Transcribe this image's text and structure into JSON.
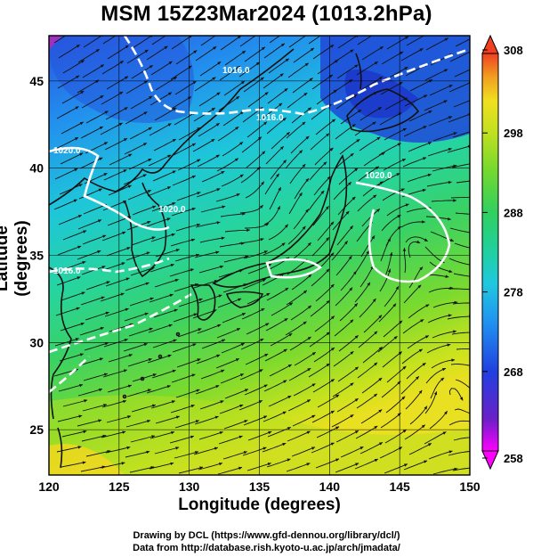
{
  "title": "MSM 15Z23Mar2024 (1013.2hPa)",
  "axes": {
    "xlabel": "Longitude (degrees)",
    "ylabel": "Latitude  (degrees)",
    "x_range": [
      120,
      150
    ],
    "y_range": [
      22.4,
      47.6
    ],
    "x_ticks": [
      "120",
      "125",
      "130",
      "135",
      "140",
      "145",
      "150"
    ],
    "y_ticks": [
      "25",
      "30",
      "35",
      "40",
      "45"
    ],
    "grid": true
  },
  "colorbar": {
    "min": 258,
    "max": 308,
    "tick_labels": [
      "308",
      "298",
      "288",
      "278",
      "268",
      "258"
    ],
    "colors_low_to_high": [
      "#ff00ff",
      "#6020d0",
      "#2040e0",
      "#2080f0",
      "#20c0e0",
      "#20d0a0",
      "#30d060",
      "#70d830",
      "#c0e020",
      "#f0e020",
      "#f0a020",
      "#f04020"
    ]
  },
  "isobar_labels": [
    "1016.0",
    "1020.0",
    "1020.0",
    "1016.0",
    "1016.0",
    "1020.0"
  ],
  "credits": {
    "line1": "Drawing by DCL (https://www.gfd-dennou.org/library/dcl/)",
    "line2": "Data from http://database.rish.kyoto-u.ac.jp/arch/jmadata/"
  }
}
